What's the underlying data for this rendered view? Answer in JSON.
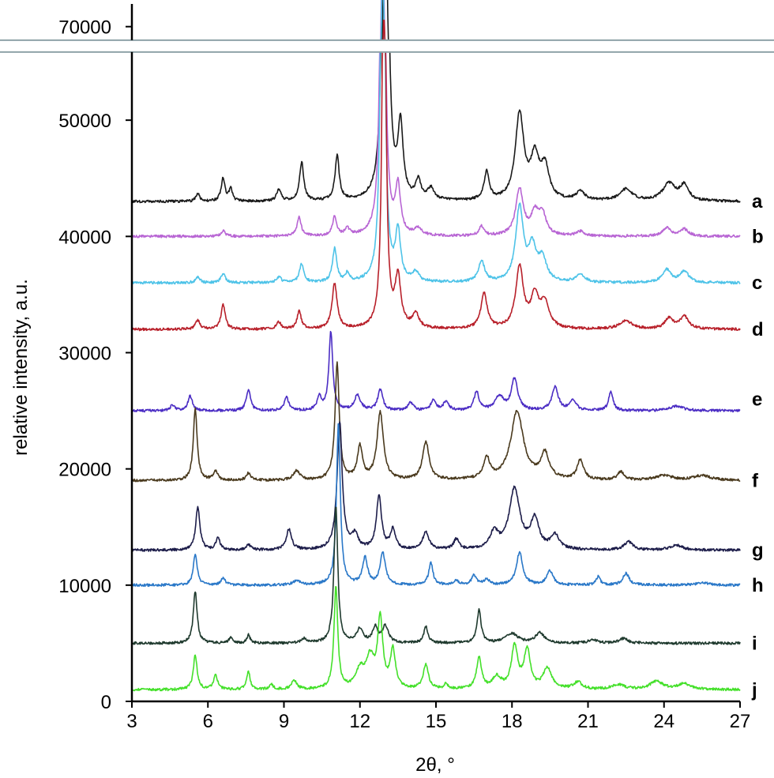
{
  "chart_data": {
    "type": "line",
    "title": "",
    "xlabel": "2θ, °",
    "ylabel": "relative intensity, a.u.",
    "xlim": [
      3,
      27
    ],
    "ylim": [
      0,
      76000
    ],
    "axis_break": {
      "from": 56000,
      "to": 66000
    },
    "x_ticks": [
      3,
      6,
      9,
      12,
      15,
      18,
      21,
      24,
      27
    ],
    "x_tick_labels": [
      "3",
      "6",
      "9",
      "12",
      "15",
      "18",
      "21",
      "24",
      "27"
    ],
    "y_ticks": [
      0,
      10000,
      20000,
      30000,
      40000,
      50000,
      70000
    ],
    "y_tick_labels": [
      "0",
      "10000",
      "20000",
      "30000",
      "40000",
      "50000",
      "70000"
    ],
    "grid": false,
    "series": [
      {
        "label": "a",
        "color": "#1a1a1a",
        "baseline": 43000,
        "label_y": 43000,
        "peaks": [
          [
            5.6,
            700,
            0.08
          ],
          [
            6.6,
            2000,
            0.09
          ],
          [
            6.9,
            1000,
            0.08
          ],
          [
            8.8,
            1000,
            0.1
          ],
          [
            9.7,
            3300,
            0.1
          ],
          [
            11.1,
            3800,
            0.1
          ],
          [
            13.0,
            76000,
            0.08
          ],
          [
            13.6,
            6200,
            0.12
          ],
          [
            14.3,
            1600,
            0.12
          ],
          [
            14.8,
            1000,
            0.15
          ],
          [
            17.0,
            2400,
            0.12
          ],
          [
            18.3,
            7400,
            0.2
          ],
          [
            18.9,
            3500,
            0.2
          ],
          [
            19.3,
            2700,
            0.2
          ],
          [
            20.7,
            800,
            0.2
          ],
          [
            22.5,
            1000,
            0.3
          ],
          [
            24.2,
            1500,
            0.3
          ],
          [
            24.8,
            1300,
            0.2
          ]
        ]
      },
      {
        "label": "b",
        "color": "#b865d4",
        "baseline": 40000,
        "label_y": 40000,
        "peaks": [
          [
            6.6,
            500,
            0.1
          ],
          [
            9.6,
            1600,
            0.1
          ],
          [
            11.0,
            1600,
            0.1
          ],
          [
            11.5,
            600,
            0.1
          ],
          [
            12.9,
            54000,
            0.08
          ],
          [
            13.5,
            4000,
            0.12
          ],
          [
            14.3,
            600,
            0.15
          ],
          [
            16.8,
            800,
            0.12
          ],
          [
            18.3,
            4000,
            0.18
          ],
          [
            18.9,
            1800,
            0.18
          ],
          [
            19.2,
            1800,
            0.18
          ],
          [
            20.7,
            400,
            0.2
          ],
          [
            24.1,
            700,
            0.2
          ],
          [
            24.8,
            600,
            0.2
          ]
        ]
      },
      {
        "label": "c",
        "color": "#4ec3e8",
        "baseline": 36000,
        "label_y": 36000,
        "peaks": [
          [
            5.6,
            500,
            0.1
          ],
          [
            6.6,
            800,
            0.1
          ],
          [
            8.8,
            500,
            0.1
          ],
          [
            9.7,
            1600,
            0.1
          ],
          [
            11.0,
            2900,
            0.1
          ],
          [
            11.5,
            700,
            0.1
          ],
          [
            12.9,
            50000,
            0.08
          ],
          [
            13.5,
            4200,
            0.12
          ],
          [
            14.2,
            800,
            0.15
          ],
          [
            16.8,
            1800,
            0.15
          ],
          [
            18.3,
            6400,
            0.18
          ],
          [
            18.8,
            2800,
            0.18
          ],
          [
            19.2,
            1900,
            0.2
          ],
          [
            20.7,
            700,
            0.2
          ],
          [
            24.1,
            1100,
            0.2
          ],
          [
            24.8,
            1000,
            0.2
          ]
        ]
      },
      {
        "label": "d",
        "color": "#b8202a",
        "baseline": 32000,
        "label_y": 32000,
        "peaks": [
          [
            5.6,
            800,
            0.1
          ],
          [
            6.6,
            2100,
            0.1
          ],
          [
            8.8,
            600,
            0.1
          ],
          [
            9.6,
            1500,
            0.1
          ],
          [
            11.0,
            3900,
            0.12
          ],
          [
            12.95,
            40000,
            0.08
          ],
          [
            13.5,
            4200,
            0.14
          ],
          [
            14.2,
            1200,
            0.15
          ],
          [
            16.9,
            3000,
            0.15
          ],
          [
            18.3,
            5300,
            0.18
          ],
          [
            18.9,
            2700,
            0.18
          ],
          [
            19.3,
            2200,
            0.2
          ],
          [
            22.5,
            700,
            0.3
          ],
          [
            24.2,
            900,
            0.2
          ],
          [
            24.8,
            1100,
            0.2
          ]
        ]
      },
      {
        "label": "e",
        "color": "#4b2dc4",
        "baseline": 25000,
        "label_y": 26000,
        "peaks": [
          [
            4.6,
            500,
            0.1
          ],
          [
            5.3,
            1300,
            0.1
          ],
          [
            7.6,
            1800,
            0.1
          ],
          [
            9.1,
            1200,
            0.1
          ],
          [
            10.4,
            1200,
            0.1
          ],
          [
            10.85,
            6800,
            0.09
          ],
          [
            11.9,
            1300,
            0.15
          ],
          [
            12.8,
            1800,
            0.12
          ],
          [
            14.0,
            700,
            0.12
          ],
          [
            14.9,
            900,
            0.12
          ],
          [
            15.4,
            800,
            0.12
          ],
          [
            16.6,
            1600,
            0.12
          ],
          [
            17.5,
            1200,
            0.2
          ],
          [
            18.1,
            2700,
            0.15
          ],
          [
            19.7,
            2000,
            0.15
          ],
          [
            20.4,
            900,
            0.15
          ],
          [
            21.9,
            1700,
            0.1
          ],
          [
            24.5,
            400,
            0.3
          ]
        ]
      },
      {
        "label": "f",
        "color": "#4a3a1e",
        "baseline": 19000,
        "label_y": 19000,
        "peaks": [
          [
            5.5,
            6200,
            0.09
          ],
          [
            6.3,
            800,
            0.1
          ],
          [
            7.6,
            600,
            0.1
          ],
          [
            9.5,
            800,
            0.15
          ],
          [
            11.1,
            10000,
            0.1
          ],
          [
            12.0,
            2800,
            0.12
          ],
          [
            12.8,
            5800,
            0.15
          ],
          [
            14.6,
            3300,
            0.15
          ],
          [
            17.0,
            1800,
            0.15
          ],
          [
            18.2,
            5900,
            0.3
          ],
          [
            19.3,
            2200,
            0.2
          ],
          [
            20.7,
            1700,
            0.15
          ],
          [
            22.3,
            700,
            0.15
          ],
          [
            24.0,
            400,
            0.4
          ],
          [
            25.5,
            400,
            0.4
          ]
        ]
      },
      {
        "label": "g",
        "color": "#1d1d4a",
        "baseline": 13000,
        "label_y": 13000,
        "peaks": [
          [
            5.6,
            3700,
            0.1
          ],
          [
            6.4,
            1000,
            0.1
          ],
          [
            7.6,
            500,
            0.1
          ],
          [
            9.2,
            1800,
            0.12
          ],
          [
            11.2,
            11000,
            0.12
          ],
          [
            11.8,
            1200,
            0.15
          ],
          [
            12.75,
            4600,
            0.12
          ],
          [
            13.3,
            1700,
            0.12
          ],
          [
            14.6,
            1500,
            0.15
          ],
          [
            15.8,
            900,
            0.12
          ],
          [
            17.3,
            1400,
            0.2
          ],
          [
            18.1,
            5200,
            0.25
          ],
          [
            18.9,
            2500,
            0.2
          ],
          [
            19.7,
            1200,
            0.2
          ],
          [
            22.6,
            700,
            0.2
          ],
          [
            24.5,
            400,
            0.3
          ]
        ]
      },
      {
        "label": "h",
        "color": "#2a78c8",
        "baseline": 10000,
        "label_y": 10000,
        "peaks": [
          [
            5.5,
            2700,
            0.09
          ],
          [
            6.6,
            600,
            0.1
          ],
          [
            9.5,
            400,
            0.15
          ],
          [
            11.15,
            14000,
            0.09
          ],
          [
            12.2,
            2300,
            0.12
          ],
          [
            12.9,
            2800,
            0.12
          ],
          [
            14.8,
            1900,
            0.1
          ],
          [
            15.8,
            400,
            0.12
          ],
          [
            16.5,
            800,
            0.12
          ],
          [
            17.0,
            500,
            0.12
          ],
          [
            18.3,
            2800,
            0.15
          ],
          [
            19.5,
            1200,
            0.15
          ],
          [
            21.4,
            700,
            0.1
          ],
          [
            22.5,
            1000,
            0.15
          ],
          [
            25.5,
            200,
            0.3
          ]
        ]
      },
      {
        "label": "i",
        "color": "#1f3a2e",
        "baseline": 5000,
        "label_y": 5000,
        "peaks": [
          [
            5.5,
            4500,
            0.09
          ],
          [
            6.9,
            500,
            0.08
          ],
          [
            7.6,
            700,
            0.08
          ],
          [
            9.8,
            400,
            0.12
          ],
          [
            11.05,
            11800,
            0.09
          ],
          [
            12.0,
            1200,
            0.15
          ],
          [
            12.6,
            1300,
            0.12
          ],
          [
            13.0,
            1400,
            0.15
          ],
          [
            14.6,
            1400,
            0.1
          ],
          [
            16.7,
            2800,
            0.1
          ],
          [
            18.0,
            800,
            0.3
          ],
          [
            19.1,
            900,
            0.2
          ],
          [
            21.2,
            300,
            0.2
          ],
          [
            22.4,
            400,
            0.2
          ]
        ]
      },
      {
        "label": "j",
        "color": "#44e02a",
        "baseline": 1000,
        "label_y": 1000,
        "peaks": [
          [
            5.5,
            3000,
            0.09
          ],
          [
            6.3,
            1200,
            0.1
          ],
          [
            7.6,
            1600,
            0.08
          ],
          [
            8.5,
            400,
            0.1
          ],
          [
            9.4,
            800,
            0.12
          ],
          [
            11.05,
            8800,
            0.09
          ],
          [
            12.0,
            1500,
            0.2
          ],
          [
            12.4,
            2500,
            0.2
          ],
          [
            12.8,
            5900,
            0.12
          ],
          [
            13.3,
            3300,
            0.12
          ],
          [
            14.6,
            2100,
            0.12
          ],
          [
            15.4,
            400,
            0.1
          ],
          [
            16.7,
            2700,
            0.12
          ],
          [
            17.4,
            1000,
            0.2
          ],
          [
            18.1,
            3600,
            0.15
          ],
          [
            18.6,
            3300,
            0.15
          ],
          [
            19.4,
            1800,
            0.2
          ],
          [
            20.6,
            600,
            0.2
          ],
          [
            22.2,
            400,
            0.3
          ],
          [
            23.7,
            700,
            0.3
          ],
          [
            24.8,
            500,
            0.3
          ]
        ]
      }
    ]
  }
}
